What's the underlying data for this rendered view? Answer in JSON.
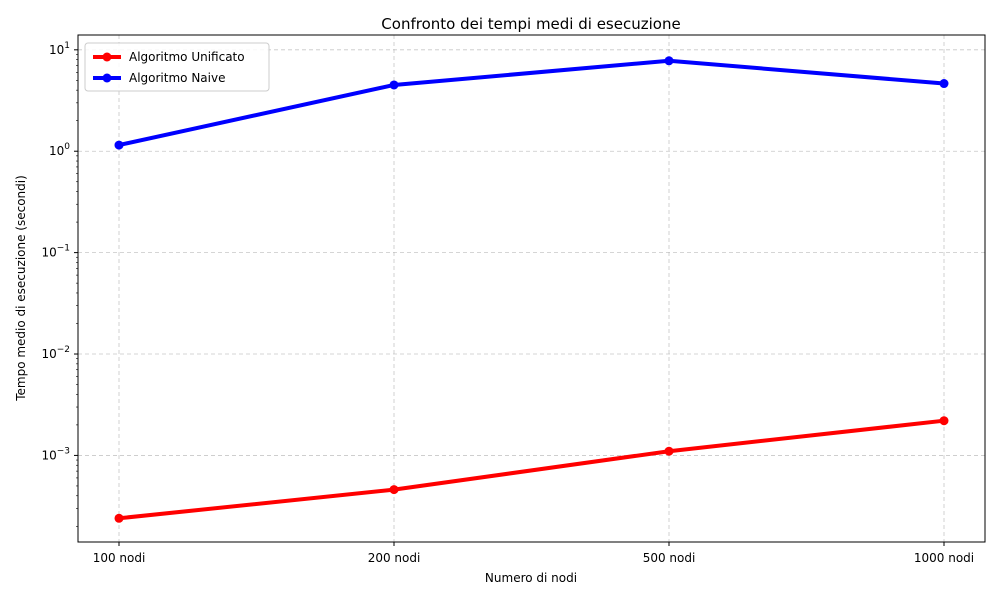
{
  "chart_data": {
    "type": "line",
    "title": "Confronto dei tempi medi di esecuzione",
    "xlabel": "Numero di nodi",
    "ylabel": "Tempo medio di esecuzione (secondi)",
    "categories": [
      "100 nodi",
      "200 nodi",
      "500 nodi",
      "1000 nodi"
    ],
    "yscale": "log",
    "ylim": [
      0.00014,
      14
    ],
    "yticks": [
      {
        "value": 0.001,
        "base": "10",
        "exp": "−3"
      },
      {
        "value": 0.01,
        "base": "10",
        "exp": "−2"
      },
      {
        "value": 0.1,
        "base": "10",
        "exp": "−1"
      },
      {
        "value": 1,
        "base": "10",
        "exp": "0"
      },
      {
        "value": 10,
        "base": "10",
        "exp": "1"
      }
    ],
    "grid": true,
    "legend_position": "top-left",
    "series": [
      {
        "name": "Algoritmo Unificato",
        "color": "#ff0000",
        "values": [
          0.00024,
          0.00046,
          0.0011,
          0.0022
        ]
      },
      {
        "name": "Algoritmo Naive",
        "color": "#0000ff",
        "values": [
          1.15,
          4.5,
          7.8,
          4.65
        ]
      }
    ]
  }
}
